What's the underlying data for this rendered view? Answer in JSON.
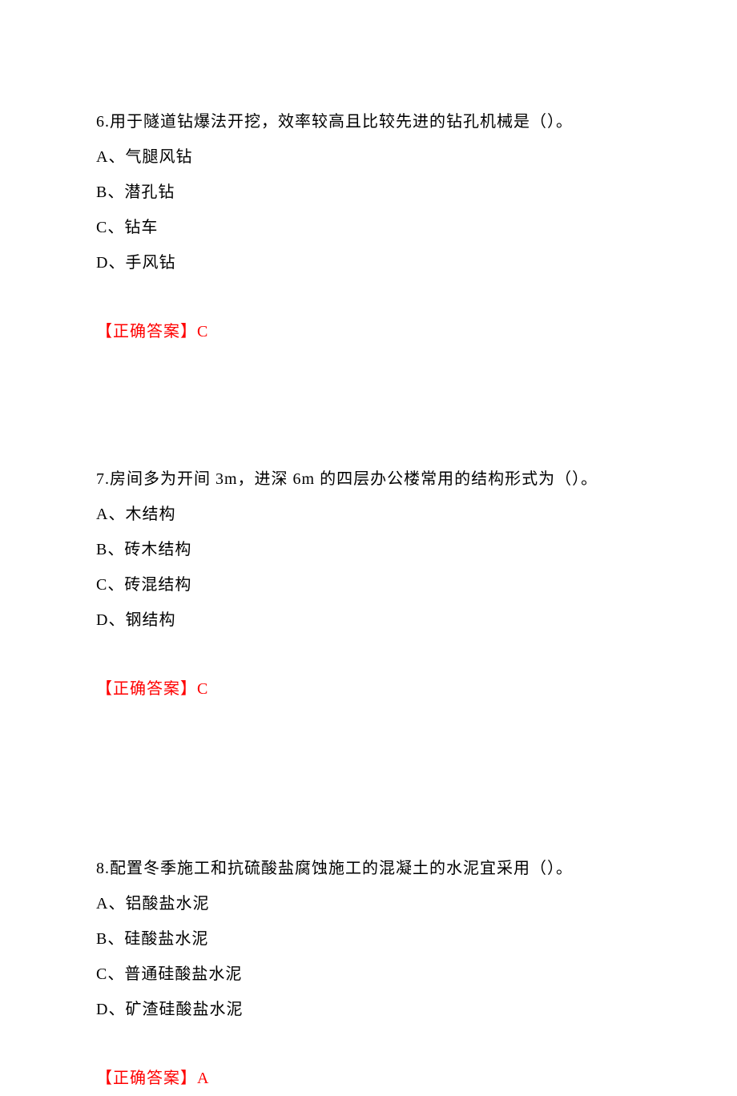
{
  "text_color": "#000000",
  "answer_color": "#ff0000",
  "background_color": "#ffffff",
  "font_size": 20,
  "font_family": "SimSun",
  "questions": [
    {
      "number": "6",
      "stem": "6.用于隧道钻爆法开挖，效率较高且比较先进的钻孔机械是（）。",
      "options": [
        "A、气腿风钻",
        "B、潜孔钻",
        "C、钻车",
        "D、手风钻"
      ],
      "answer_label": "【正确答案】C"
    },
    {
      "number": "7",
      "stem": "7.房间多为开间 3m，进深 6m 的四层办公楼常用的结构形式为（）。",
      "options": [
        "A、木结构",
        "B、砖木结构",
        "C、砖混结构",
        "D、钢结构"
      ],
      "answer_label": "【正确答案】C"
    },
    {
      "number": "8",
      "stem": "8.配置冬季施工和抗硫酸盐腐蚀施工的混凝土的水泥宜采用（）。",
      "options": [
        "A、铝酸盐水泥",
        "B、硅酸盐水泥",
        "C、普通硅酸盐水泥",
        "D、矿渣硅酸盐水泥"
      ],
      "answer_label": "【正确答案】A"
    }
  ]
}
